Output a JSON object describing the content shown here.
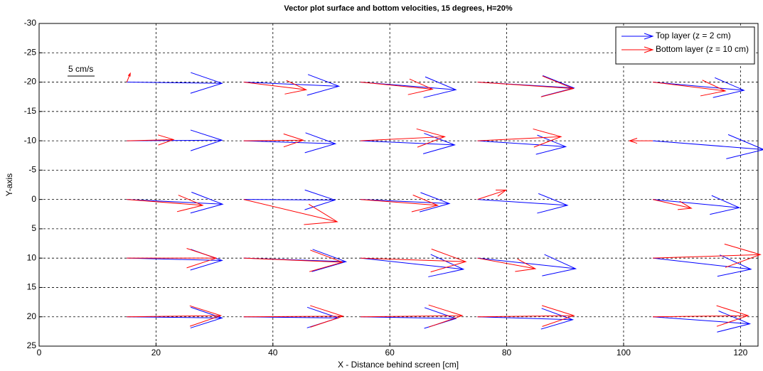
{
  "chart_data": {
    "type": "quiver",
    "title": "Vector plot surface and bottom velocities, 15 degrees, H=20%",
    "xlabel": "X - Distance behind screen [cm]",
    "ylabel": "Y-axis",
    "scale_label": "5 cm/s",
    "xlim": [
      0,
      123
    ],
    "xticks": [
      0,
      20,
      40,
      60,
      80,
      100,
      120
    ],
    "ylim": [
      -30,
      25
    ],
    "yticks": [
      -30,
      -25,
      -20,
      -15,
      -10,
      -5,
      0,
      5,
      10,
      15,
      20,
      25
    ],
    "ydir": "reverse",
    "grid": true,
    "legend": "northeast",
    "series": [
      {
        "name": "Top layer (z = 2 cm)",
        "color": "#0000ff",
        "x": [
          15,
          35,
          55,
          75,
          105,
          15,
          35,
          55,
          75,
          105,
          15,
          35,
          55,
          75,
          105,
          15,
          35,
          55,
          75,
          105,
          15,
          35,
          55,
          75,
          105
        ],
        "y": [
          -20,
          -20,
          -20,
          -20,
          -20,
          -10,
          -10,
          -10,
          -10,
          -10,
          0,
          0,
          0,
          0,
          0,
          10,
          10,
          10,
          10,
          10,
          20,
          20,
          20,
          20,
          20
        ],
        "u": [
          16.3,
          16.3,
          16.3,
          16.5,
          15.6,
          16.3,
          15.7,
          16.1,
          15.1,
          19.0,
          16.4,
          15.6,
          15.2,
          15.4,
          14.8,
          16.3,
          17.5,
          17.6,
          16.8,
          16.8,
          16.3,
          16.2,
          16.3,
          16.3,
          16.6
        ],
        "v": [
          0.2,
          0.7,
          1.3,
          1.0,
          1.4,
          -0.1,
          0.5,
          0.7,
          1.0,
          1.5,
          0.8,
          0.1,
          0.7,
          1.0,
          1.4,
          0.4,
          0.6,
          1.9,
          1.8,
          1.9,
          0.2,
          0.2,
          0.3,
          0.5,
          1.2
        ]
      },
      {
        "name": "Bottom layer (z = 10 cm)",
        "color": "#ff0000",
        "x": [
          15,
          35,
          55,
          75,
          105,
          15,
          35,
          55,
          75,
          105,
          15,
          35,
          55,
          75,
          105,
          15,
          35,
          55,
          75,
          105,
          15,
          35,
          55,
          75,
          105
        ],
        "y": [
          -20,
          -20,
          -20,
          -20,
          -20,
          -10,
          -10,
          -10,
          -10,
          -10,
          0,
          0,
          0,
          0,
          0,
          10,
          10,
          10,
          10,
          10,
          20,
          20,
          20,
          20,
          20
        ],
        "u": [
          0.6,
          10.7,
          12.3,
          16.4,
          12.4,
          8.0,
          10.2,
          14.4,
          14.3,
          -4.0,
          13.0,
          16.0,
          13.2,
          4.9,
          6.6,
          15.3,
          16.9,
          18.0,
          9.9,
          18.4,
          16.1,
          17.0,
          17.4,
          16.5,
          16.3
        ],
        "v": [
          -1.5,
          1.3,
          1.2,
          1.1,
          1.5,
          -0.2,
          -0.1,
          -0.7,
          -0.7,
          0,
          1.0,
          3.8,
          1.0,
          -1.6,
          1.5,
          0,
          0.7,
          0.6,
          1.8,
          -0.6,
          -0.2,
          -0.1,
          -0.2,
          -0.2,
          -0.2
        ]
      }
    ]
  }
}
